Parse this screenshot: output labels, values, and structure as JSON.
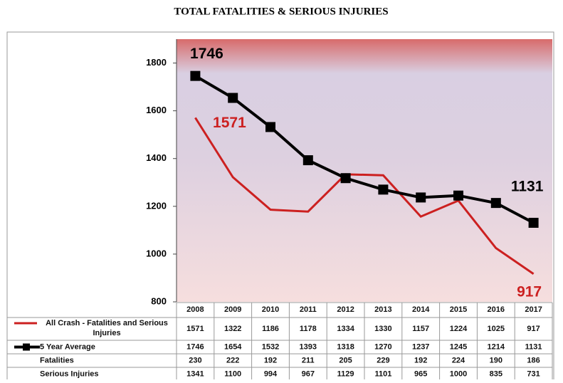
{
  "chart_data": {
    "type": "line",
    "title": "TOTAL FATALITIES & SERIOUS INJURIES",
    "categories": [
      "2008",
      "2009",
      "2010",
      "2011",
      "2012",
      "2013",
      "2014",
      "2015",
      "2016",
      "2017"
    ],
    "series": [
      {
        "name": "All Crash - Fatalities and Serious Injuries",
        "color": "#cc2020",
        "values": [
          1571,
          1322,
          1186,
          1178,
          1334,
          1330,
          1157,
          1224,
          1025,
          917
        ]
      },
      {
        "name": "5 Year Average",
        "color": "#000000",
        "values": [
          1746,
          1654,
          1532,
          1393,
          1318,
          1270,
          1237,
          1245,
          1214,
          1131
        ]
      }
    ],
    "table_rows": [
      {
        "name": "Fatalities",
        "values": [
          230,
          222,
          192,
          211,
          205,
          229,
          192,
          224,
          190,
          186
        ]
      },
      {
        "name": "Serious Injuries",
        "values": [
          1341,
          1100,
          994,
          967,
          1129,
          1101,
          965,
          1000,
          835,
          731
        ]
      }
    ],
    "ylim": [
      800,
      1900
    ],
    "yticks": [
      800,
      1000,
      1200,
      1400,
      1600,
      1800
    ]
  }
}
